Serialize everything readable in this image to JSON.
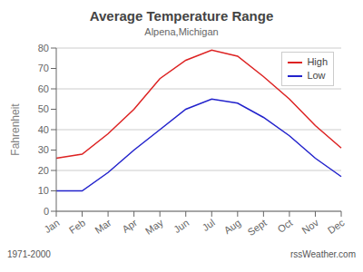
{
  "chart_data": {
    "type": "line",
    "title": "Average Temperature Range",
    "subtitle": "Alpena,Michigan",
    "ylabel": "Fahrenheit",
    "categories": [
      "Jan",
      "Feb",
      "Mar",
      "Apr",
      "May",
      "Jun",
      "Jul",
      "Aug",
      "Sept",
      "Oct",
      "Nov",
      "Dec"
    ],
    "series": [
      {
        "name": "High",
        "color": "#dd2222",
        "values": [
          26,
          28,
          38,
          50,
          65,
          74,
          79,
          76,
          66,
          55,
          42,
          31
        ]
      },
      {
        "name": "Low",
        "color": "#2222cc",
        "values": [
          10,
          10,
          19,
          30,
          40,
          50,
          55,
          53,
          46,
          37,
          26,
          17
        ]
      }
    ],
    "ylim": [
      0,
      80
    ],
    "yticks": [
      0,
      10,
      20,
      30,
      40,
      50,
      60,
      70,
      80
    ],
    "grid": "y",
    "legend": "upper right",
    "annotations": [
      "1971-2000",
      "rssWeather.com"
    ]
  }
}
